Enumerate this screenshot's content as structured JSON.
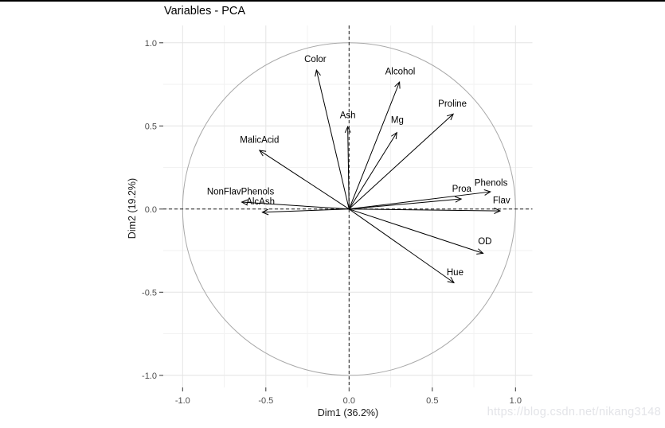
{
  "title": "Variables - PCA",
  "watermark": "https://blog.csdn.net/nikang3148",
  "chart_data": {
    "type": "scatter",
    "subtype": "pca-variable-correlation-circle",
    "title": "Variables - PCA",
    "xlabel": "Dim1 (36.2%)",
    "ylabel": "Dim2 (19.2%)",
    "xlim": [
      -1.12,
      1.1
    ],
    "ylim": [
      -1.08,
      1.1
    ],
    "grid": true,
    "legend_position": "none",
    "unit_circle": true,
    "dashed_zero_axes": true,
    "x_ticks": {
      "values": [
        -1.0,
        -0.5,
        0.0,
        0.5,
        1.0
      ],
      "labels": [
        "-1.0",
        "-0.5",
        "0.0",
        "0.5",
        "1.0"
      ]
    },
    "y_ticks": {
      "values": [
        -1.0,
        -0.5,
        0.0,
        0.5,
        1.0
      ],
      "labels": [
        "-1.0",
        "-0.5",
        "0.0",
        "0.5",
        "1.0"
      ]
    },
    "minor_ticks": [
      -0.75,
      -0.25,
      0.25,
      0.75
    ],
    "variables": [
      {
        "name": "Color",
        "x": -0.196,
        "y": 0.836,
        "label_x": -0.203,
        "label_y": 0.904
      },
      {
        "name": "Alcohol",
        "x": 0.303,
        "y": 0.764,
        "label_x": 0.307,
        "label_y": 0.828
      },
      {
        "name": "Ash",
        "x": -0.008,
        "y": 0.496,
        "label_x": -0.008,
        "label_y": 0.567
      },
      {
        "name": "Mg",
        "x": 0.287,
        "y": 0.46,
        "label_x": 0.29,
        "label_y": 0.538
      },
      {
        "name": "Proline",
        "x": 0.626,
        "y": 0.572,
        "label_x": 0.621,
        "label_y": 0.636
      },
      {
        "name": "MalicAcid",
        "x": -0.538,
        "y": 0.353,
        "label_x": -0.538,
        "label_y": 0.418
      },
      {
        "name": "NonFlavPhenols",
        "x": -0.645,
        "y": 0.042,
        "label_x": -0.652,
        "label_y": 0.106
      },
      {
        "name": "AlcAsh",
        "x": -0.521,
        "y": -0.019,
        "label_x": -0.532,
        "label_y": 0.048
      },
      {
        "name": "Phenols",
        "x": 0.849,
        "y": 0.104,
        "label_x": 0.853,
        "label_y": 0.159
      },
      {
        "name": "Proa",
        "x": 0.674,
        "y": 0.061,
        "label_x": 0.677,
        "label_y": 0.123
      },
      {
        "name": "Flav",
        "x": 0.908,
        "y": -0.011,
        "label_x": 0.916,
        "label_y": 0.054
      },
      {
        "name": "OD",
        "x": 0.805,
        "y": -0.266,
        "label_x": 0.816,
        "label_y": -0.193
      },
      {
        "name": "Hue",
        "x": 0.63,
        "y": -0.443,
        "label_x": 0.637,
        "label_y": -0.38
      }
    ]
  },
  "colors": {
    "background": "#ffffff",
    "arrow": "#000000",
    "variable_label": "#000000",
    "circle": "#a9a9a9",
    "grid_major": "#e4e4e4",
    "grid_minor": "#f2f2f2",
    "dashed_axis": "#1a1a1a",
    "tick_mark": "#333333",
    "tick_label": "#4d4d4d",
    "axis_title": "#1a1a1a",
    "title_text": "#000000",
    "watermark": "#e3e4e8"
  }
}
